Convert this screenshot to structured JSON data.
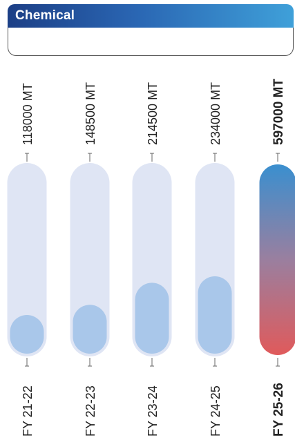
{
  "header": {
    "title": "Chemical",
    "subtitle": ""
  },
  "chart_data": {
    "type": "bar",
    "orientation": "vertical",
    "categories": [
      "FY 21-22",
      "FY 22-23",
      "FY 23-24",
      "FY 24-25",
      "FY 25-26"
    ],
    "values": [
      118000,
      148500,
      214500,
      234000,
      597000
    ],
    "value_labels": [
      "118000 MT",
      "148500 MT",
      "214500 MT",
      "234000 MT",
      "597000 MT"
    ],
    "highlight_index": 4,
    "ylim": [
      0,
      597000
    ],
    "unit": "MT",
    "colors": {
      "track": "#dfe5f4",
      "fill": "#a9c7ea",
      "highlight_top": "#3a8fcf",
      "highlight_mid": "#9a7f9f",
      "highlight_bottom": "#e05a5b",
      "label": "#222222"
    }
  }
}
